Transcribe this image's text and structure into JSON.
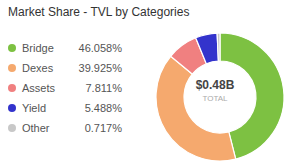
{
  "chart_data": {
    "type": "pie",
    "title": "Market Share - TVL by Categories",
    "categories": [
      "Bridge",
      "Dexes",
      "Assets",
      "Yield",
      "Other"
    ],
    "values": [
      46.058,
      39.925,
      7.811,
      5.488,
      0.717
    ],
    "value_labels": [
      "46.058%",
      "39.925%",
      "7.811%",
      "5.488%",
      "0.717%"
    ],
    "colors": [
      "#7dc142",
      "#f5a96e",
      "#f08080",
      "#3333cc",
      "#c8c8c8"
    ],
    "annotations": [
      "$0.48B",
      "TOTAL"
    ],
    "legend": "left"
  }
}
